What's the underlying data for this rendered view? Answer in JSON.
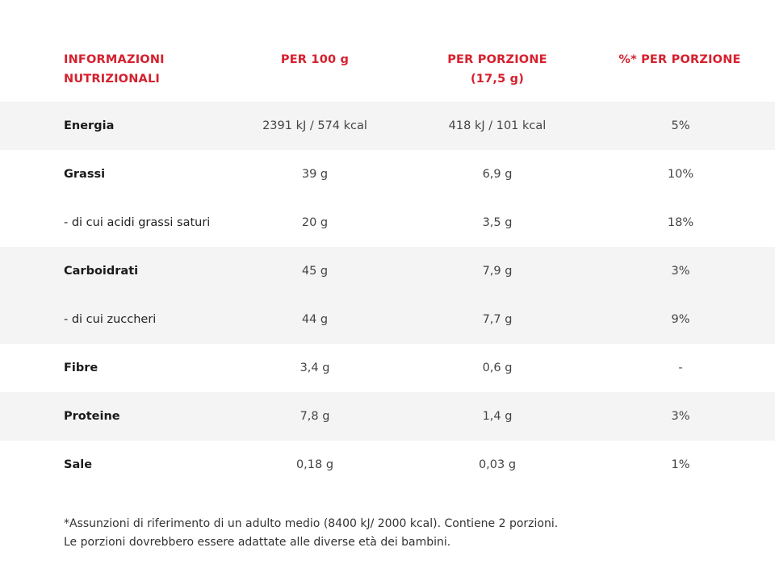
{
  "header": {
    "col_label_line1": "INFORMAZIONI",
    "col_label_line2": "NUTRIZIONALI",
    "col_per100": "PER 100 g",
    "col_portion_line1": "PER PORZIONE",
    "col_portion_line2": "(17,5 g)",
    "col_percent": "%* PER PORZIONE"
  },
  "rows": [
    {
      "label": "Energia",
      "per100": "2391 kJ / 574 kcal",
      "portion": "418 kJ / 101 kcal",
      "percent": "5%"
    },
    {
      "label": "Grassi",
      "per100": "39 g",
      "portion": "6,9 g",
      "percent": "10%"
    },
    {
      "label": "- di cui acidi grassi saturi",
      "per100": "20 g",
      "portion": "3,5 g",
      "percent": "18%"
    },
    {
      "label": "Carboidrati",
      "per100": "45 g",
      "portion": "7,9 g",
      "percent": "3%"
    },
    {
      "label": "- di cui zuccheri",
      "per100": "44 g",
      "portion": "7,7 g",
      "percent": "9%"
    },
    {
      "label": "Fibre",
      "per100": "3,4 g",
      "portion": "0,6 g",
      "percent": "-"
    },
    {
      "label": "Proteine",
      "per100": "7,8 g",
      "portion": "1,4 g",
      "percent": "3%"
    },
    {
      "label": "Sale",
      "per100": "0,18 g",
      "portion": "0,03 g",
      "percent": "1%"
    }
  ],
  "footnote": {
    "line1": "*Assunzioni di riferimento di un adulto medio (8400 kJ/ 2000 kcal). Contiene 2 porzioni.",
    "line2": "Le porzioni dovrebbero essere adattate alle diverse età dei bambini."
  },
  "colors": {
    "header_text": "#d6202e",
    "row_shade": "#f4f4f4"
  }
}
